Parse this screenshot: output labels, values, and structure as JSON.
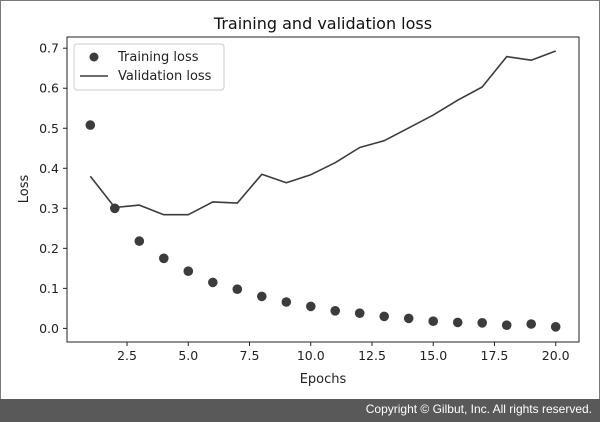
{
  "chart_data": {
    "type": "line",
    "title": "Training and validation loss",
    "xlabel": "Epochs",
    "ylabel": "Loss",
    "xlim": [
      0.05,
      20.95
    ],
    "ylim": [
      -0.034,
      0.728
    ],
    "xticks": [
      2.5,
      5.0,
      7.5,
      10.0,
      12.5,
      15.0,
      17.5,
      20.0
    ],
    "xtick_labels": [
      "2.5",
      "5.0",
      "7.5",
      "10.0",
      "12.5",
      "15.0",
      "17.5",
      "20.0"
    ],
    "yticks": [
      0.0,
      0.1,
      0.2,
      0.3,
      0.4,
      0.5,
      0.6,
      0.7
    ],
    "ytick_labels": [
      "0.0",
      "0.1",
      "0.2",
      "0.3",
      "0.4",
      "0.5",
      "0.6",
      "0.7"
    ],
    "grid": false,
    "legend_position": "top-left",
    "x": [
      1,
      2,
      3,
      4,
      5,
      6,
      7,
      8,
      9,
      10,
      11,
      12,
      13,
      14,
      15,
      16,
      17,
      18,
      19,
      20
    ],
    "series": [
      {
        "name": "Training loss",
        "style": "scatter",
        "color": "#3c3c3c",
        "values": [
          0.508,
          0.3,
          0.218,
          0.175,
          0.143,
          0.115,
          0.098,
          0.08,
          0.066,
          0.055,
          0.044,
          0.038,
          0.03,
          0.025,
          0.018,
          0.015,
          0.014,
          0.008,
          0.011,
          0.004
        ]
      },
      {
        "name": "Validation loss",
        "style": "line",
        "color": "#3c3c3c",
        "values": [
          0.38,
          0.302,
          0.308,
          0.284,
          0.284,
          0.316,
          0.313,
          0.385,
          0.364,
          0.384,
          0.414,
          0.452,
          0.469,
          0.501,
          0.533,
          0.57,
          0.603,
          0.679,
          0.67,
          0.693
        ]
      }
    ]
  },
  "footer": {
    "copyright": "Copyright © Gilbut, Inc. All rights reserved."
  }
}
